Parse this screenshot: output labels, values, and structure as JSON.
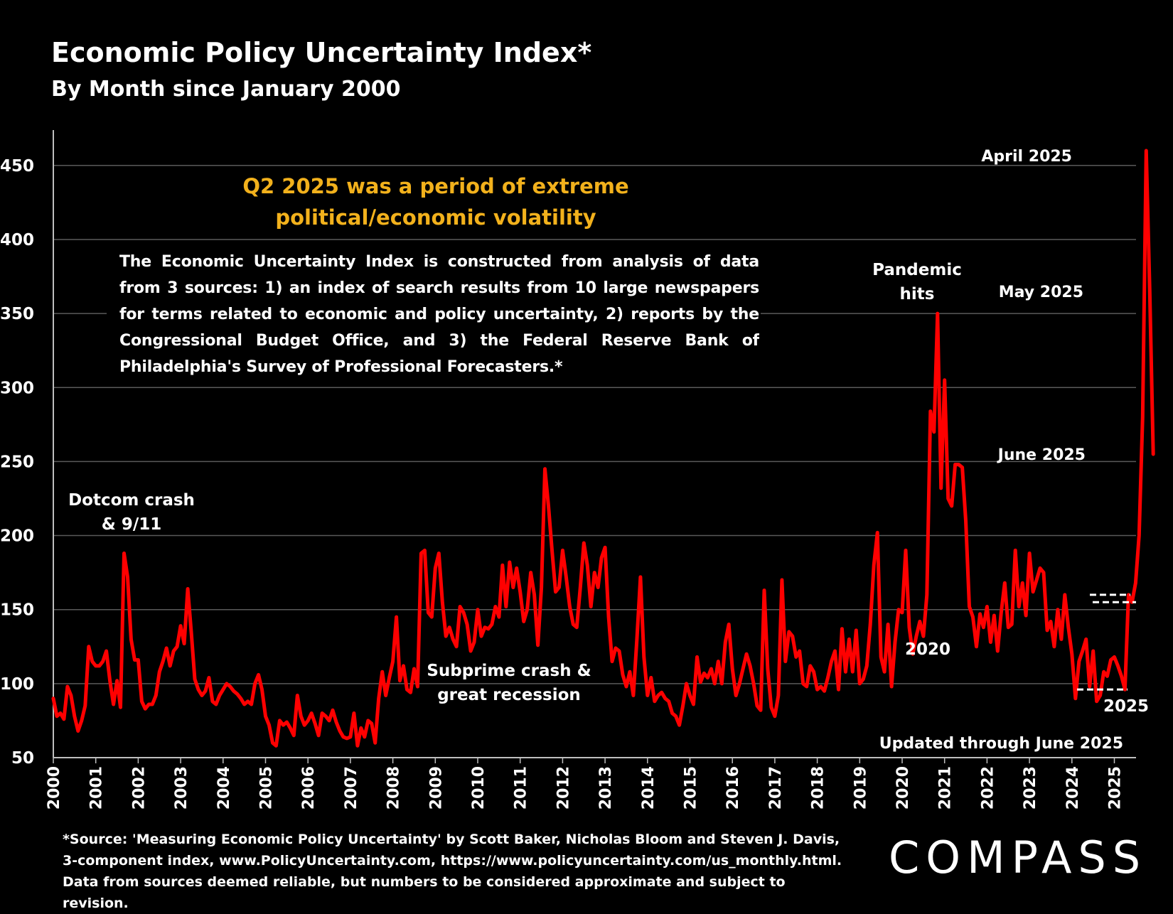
{
  "header": {
    "title": "Economic Policy Uncertainty Index*",
    "subtitle": "By Month since January 2000"
  },
  "footnote": "*Source: 'Measuring Economic Policy Uncertainty' by Scott Baker, Nicholas Bloom and Steven J. Davis, 3-component index, www.PolicyUncertainty.com, https://www.policyuncertainty.com/us_monthly.html. Data from sources deemed reliable, but numbers to be considered approximate and subject to revision.",
  "logo": "COMPASS",
  "chart_data": {
    "type": "line",
    "title": "Economic Policy Uncertainty Index*",
    "subtitle": "By Month since January 2000",
    "xlabel": "",
    "ylabel": "",
    "ylim": [
      50,
      470
    ],
    "yticks": [
      50,
      100,
      150,
      200,
      250,
      300,
      350,
      400,
      450
    ],
    "xticks": [
      "2000",
      "2001",
      "2002",
      "2003",
      "2004",
      "2005",
      "2006",
      "2007",
      "2008",
      "2009",
      "2010",
      "2011",
      "2012",
      "2013",
      "2014",
      "2015",
      "2016",
      "2017",
      "2018",
      "2019",
      "2020",
      "2021",
      "2022",
      "2023",
      "2024",
      "2025"
    ],
    "grid": true,
    "line_color": "#ff0000",
    "series": [
      {
        "name": "",
        "start": "2000-01",
        "end": "2025-06",
        "frequency": "monthly",
        "values": [
          90,
          78,
          80,
          76,
          98,
          92,
          78,
          68,
          75,
          85,
          125,
          115,
          112,
          112,
          115,
          122,
          102,
          86,
          102,
          84,
          188,
          172,
          130,
          116,
          116,
          88,
          83,
          86,
          86,
          92,
          108,
          115,
          124,
          112,
          122,
          125,
          139,
          127,
          164,
          135,
          103,
          96,
          92,
          95,
          104,
          88,
          86,
          92,
          96,
          100,
          98,
          95,
          93,
          90,
          86,
          88,
          86,
          100,
          106,
          96,
          78,
          72,
          60,
          58,
          75,
          72,
          74,
          70,
          65,
          92,
          78,
          72,
          75,
          80,
          73,
          65,
          80,
          78,
          75,
          82,
          74,
          68,
          64,
          63,
          64,
          80,
          58,
          70,
          64,
          75,
          73,
          60,
          90,
          108,
          92,
          104,
          115,
          145,
          102,
          112,
          96,
          94,
          110,
          98,
          188,
          190,
          148,
          145,
          178,
          188,
          155,
          132,
          138,
          130,
          125,
          152,
          148,
          140,
          122,
          128,
          150,
          132,
          138,
          137,
          140,
          152,
          145,
          180,
          152,
          182,
          165,
          178,
          162,
          142,
          150,
          175,
          160,
          126,
          165,
          245,
          220,
          190,
          162,
          165,
          190,
          172,
          152,
          140,
          138,
          165,
          195,
          180,
          152,
          175,
          165,
          185,
          192,
          145,
          115,
          124,
          122,
          106,
          98,
          108,
          92,
          130,
          172,
          118,
          92,
          104,
          88,
          92,
          94,
          90,
          88,
          80,
          78,
          72,
          85,
          100,
          92,
          86,
          118,
          101,
          107,
          104,
          110,
          100,
          115,
          100,
          128,
          140,
          110,
          92,
          100,
          110,
          120,
          112,
          100,
          85,
          82,
          163,
          110,
          84,
          78,
          92,
          170,
          115,
          135,
          132,
          118,
          122,
          100,
          98,
          112,
          108,
          96,
          98,
          95,
          104,
          115,
          122,
          96,
          137,
          108,
          130,
          108,
          136,
          100,
          103,
          112,
          140,
          180,
          202,
          118,
          108,
          140,
          98,
          128,
          150,
          148,
          190,
          138,
          120,
          132,
          142,
          132,
          160,
          284,
          270,
          350,
          232,
          305,
          225,
          220,
          248,
          248,
          246,
          210,
          152,
          145,
          125,
          147,
          138,
          152,
          128,
          146,
          122,
          148,
          168,
          138,
          140,
          190,
          152,
          168,
          146,
          188,
          162,
          170,
          178,
          175,
          136,
          142,
          125,
          150,
          130,
          160,
          138,
          120,
          90,
          115,
          122,
          130,
          98,
          122,
          88,
          92,
          108,
          105,
          116,
          118,
          112,
          105,
          96,
          160,
          155,
          168,
          200,
          280,
          460,
          365,
          255
        ]
      }
    ],
    "annotations": {
      "headline_line1": "Q2 2025 was a period of extreme",
      "headline_line2": "political/economic volatility",
      "description": "The Economic Uncertainty Index is constructed from analysis of data from 3 sources:  1) an index of search results from 10 large newspapers for terms related to economic and policy uncertainty, 2) reports by the Congressional Budget Office, and 3) the Federal Reserve Bank of Philadelphia's Survey of Professional Forecasters.*",
      "dotcom_line1": "Dotcom crash",
      "dotcom_line2": "& 9/11",
      "subprime_line1": "Subprime crash &",
      "subprime_line2": "great recession",
      "pandemic_line1": "Pandemic",
      "pandemic_line2": "hits",
      "year_2020": "2020",
      "year_2025": "2025",
      "april_2025": "April 2025",
      "may_2025": "May 2025",
      "june_2025": "June 2025",
      "updated": "Updated through June 2025"
    }
  }
}
